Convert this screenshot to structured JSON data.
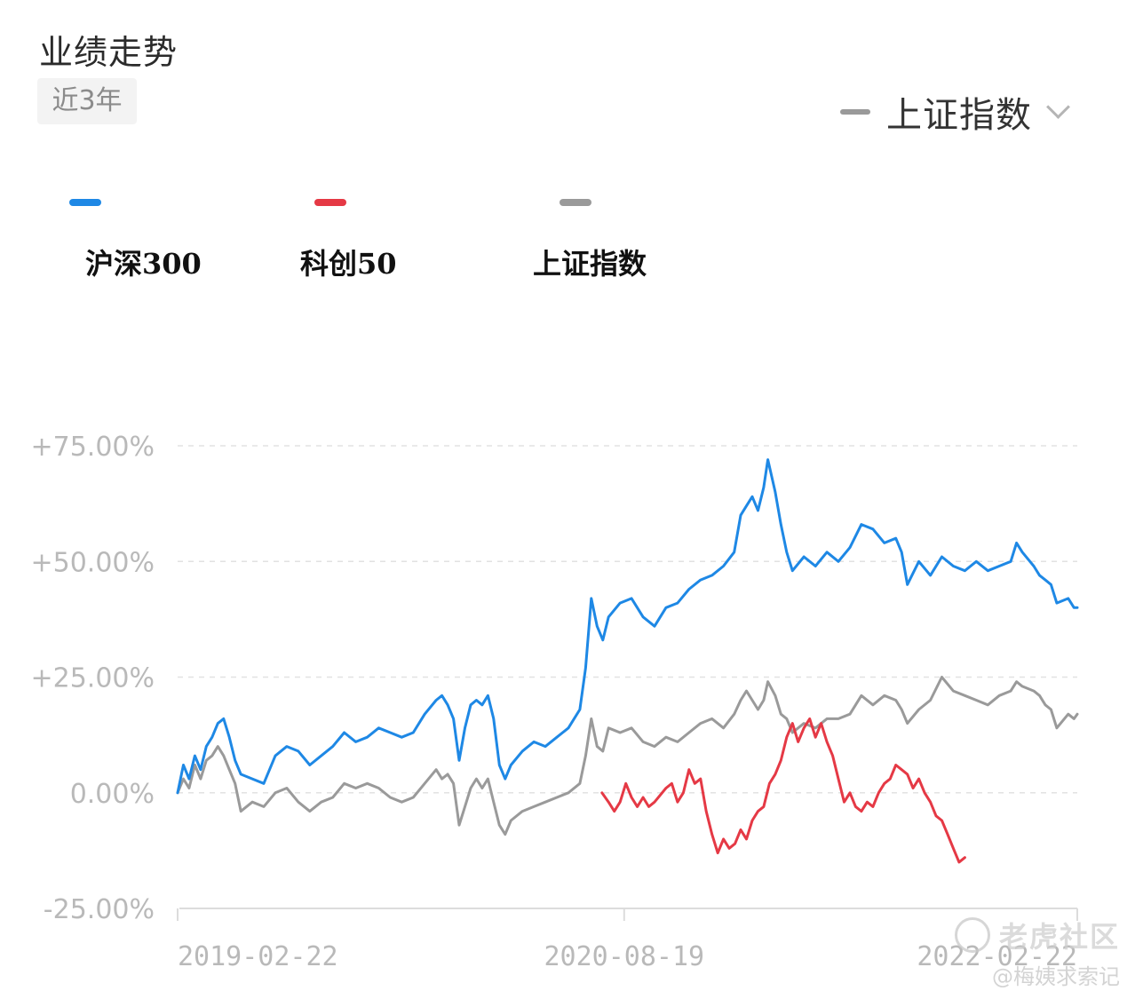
{
  "header": {
    "title": "业绩走势",
    "period": "近3年"
  },
  "compare": {
    "label": "上证指数",
    "swatch_color": "#9a9a9a"
  },
  "legend": [
    {
      "label": "沪深300",
      "color": "#1e88e5"
    },
    {
      "label": "科创50",
      "color": "#e53945"
    },
    {
      "label": "上证指数",
      "color": "#9a9a9a"
    }
  ],
  "watermark": {
    "brand": "老虎社区",
    "author": "@梅姨求索记"
  },
  "chart_data": {
    "type": "line",
    "title": "",
    "xlabel": "",
    "ylabel": "",
    "ylim": [
      -25,
      75
    ],
    "y_ticks": [
      {
        "value": 75,
        "label": "+75.00%"
      },
      {
        "value": 50,
        "label": "+50.00%"
      },
      {
        "value": 25,
        "label": "+25.00%"
      },
      {
        "value": 0,
        "label": "0.00%"
      },
      {
        "value": -25,
        "label": "-25.00%"
      }
    ],
    "x_range": [
      "2019-02-22",
      "2022-02-22"
    ],
    "x_ticks": [
      "2019-02-22",
      "2020-08-19",
      "2022-02-22"
    ],
    "grid": true,
    "legend_position": "top-left",
    "series": [
      {
        "name": "沪深300",
        "color": "#1e88e5",
        "points": [
          [
            "2019-02-22",
            0
          ],
          [
            "2019-03-01",
            6
          ],
          [
            "2019-03-08",
            3
          ],
          [
            "2019-03-15",
            8
          ],
          [
            "2019-03-22",
            5
          ],
          [
            "2019-03-29",
            10
          ],
          [
            "2019-04-05",
            12
          ],
          [
            "2019-04-12",
            15
          ],
          [
            "2019-04-19",
            16
          ],
          [
            "2019-04-26",
            12
          ],
          [
            "2019-05-03",
            7
          ],
          [
            "2019-05-10",
            4
          ],
          [
            "2019-05-24",
            3
          ],
          [
            "2019-06-07",
            2
          ],
          [
            "2019-06-21",
            8
          ],
          [
            "2019-07-05",
            10
          ],
          [
            "2019-07-19",
            9
          ],
          [
            "2019-08-02",
            6
          ],
          [
            "2019-08-16",
            8
          ],
          [
            "2019-08-30",
            10
          ],
          [
            "2019-09-13",
            13
          ],
          [
            "2019-09-27",
            11
          ],
          [
            "2019-10-11",
            12
          ],
          [
            "2019-10-25",
            14
          ],
          [
            "2019-11-08",
            13
          ],
          [
            "2019-11-22",
            12
          ],
          [
            "2019-12-06",
            13
          ],
          [
            "2019-12-20",
            17
          ],
          [
            "2020-01-03",
            20
          ],
          [
            "2020-01-10",
            21
          ],
          [
            "2020-01-17",
            19
          ],
          [
            "2020-01-24",
            16
          ],
          [
            "2020-01-31",
            7
          ],
          [
            "2020-02-07",
            14
          ],
          [
            "2020-02-14",
            19
          ],
          [
            "2020-02-21",
            20
          ],
          [
            "2020-02-28",
            19
          ],
          [
            "2020-03-06",
            21
          ],
          [
            "2020-03-13",
            16
          ],
          [
            "2020-03-20",
            6
          ],
          [
            "2020-03-27",
            3
          ],
          [
            "2020-04-03",
            6
          ],
          [
            "2020-04-17",
            9
          ],
          [
            "2020-05-01",
            11
          ],
          [
            "2020-05-15",
            10
          ],
          [
            "2020-05-29",
            12
          ],
          [
            "2020-06-12",
            14
          ],
          [
            "2020-06-26",
            18
          ],
          [
            "2020-07-03",
            27
          ],
          [
            "2020-07-10",
            42
          ],
          [
            "2020-07-17",
            36
          ],
          [
            "2020-07-24",
            33
          ],
          [
            "2020-07-31",
            38
          ],
          [
            "2020-08-14",
            41
          ],
          [
            "2020-08-28",
            42
          ],
          [
            "2020-09-11",
            38
          ],
          [
            "2020-09-25",
            36
          ],
          [
            "2020-10-09",
            40
          ],
          [
            "2020-10-23",
            41
          ],
          [
            "2020-11-06",
            44
          ],
          [
            "2020-11-20",
            46
          ],
          [
            "2020-12-04",
            47
          ],
          [
            "2020-12-18",
            49
          ],
          [
            "2020-12-31",
            52
          ],
          [
            "2021-01-08",
            60
          ],
          [
            "2021-01-15",
            62
          ],
          [
            "2021-01-22",
            64
          ],
          [
            "2021-01-29",
            61
          ],
          [
            "2021-02-05",
            66
          ],
          [
            "2021-02-10",
            72
          ],
          [
            "2021-02-19",
            65
          ],
          [
            "2021-02-26",
            58
          ],
          [
            "2021-03-05",
            52
          ],
          [
            "2021-03-12",
            48
          ],
          [
            "2021-03-26",
            51
          ],
          [
            "2021-04-09",
            49
          ],
          [
            "2021-04-23",
            52
          ],
          [
            "2021-05-07",
            50
          ],
          [
            "2021-05-21",
            53
          ],
          [
            "2021-06-04",
            58
          ],
          [
            "2021-06-18",
            57
          ],
          [
            "2021-07-02",
            54
          ],
          [
            "2021-07-16",
            55
          ],
          [
            "2021-07-23",
            52
          ],
          [
            "2021-07-30",
            45
          ],
          [
            "2021-08-13",
            50
          ],
          [
            "2021-08-27",
            47
          ],
          [
            "2021-09-10",
            51
          ],
          [
            "2021-09-24",
            49
          ],
          [
            "2021-10-08",
            48
          ],
          [
            "2021-10-22",
            50
          ],
          [
            "2021-11-05",
            48
          ],
          [
            "2021-11-19",
            49
          ],
          [
            "2021-12-03",
            50
          ],
          [
            "2021-12-10",
            54
          ],
          [
            "2021-12-17",
            52
          ],
          [
            "2021-12-31",
            49
          ],
          [
            "2022-01-07",
            47
          ],
          [
            "2022-01-14",
            46
          ],
          [
            "2022-01-21",
            45
          ],
          [
            "2022-01-28",
            41
          ],
          [
            "2022-02-11",
            42
          ],
          [
            "2022-02-18",
            40
          ],
          [
            "2022-02-22",
            40
          ]
        ]
      },
      {
        "name": "科创50",
        "color": "#e53945",
        "points": [
          [
            "2020-07-23",
            0
          ],
          [
            "2020-07-31",
            -2
          ],
          [
            "2020-08-07",
            -4
          ],
          [
            "2020-08-14",
            -2
          ],
          [
            "2020-08-21",
            2
          ],
          [
            "2020-08-28",
            -1
          ],
          [
            "2020-09-04",
            -3
          ],
          [
            "2020-09-11",
            -1
          ],
          [
            "2020-09-18",
            -3
          ],
          [
            "2020-09-25",
            -2
          ],
          [
            "2020-10-09",
            1
          ],
          [
            "2020-10-16",
            2
          ],
          [
            "2020-10-23",
            -2
          ],
          [
            "2020-10-30",
            0
          ],
          [
            "2020-11-06",
            5
          ],
          [
            "2020-11-13",
            2
          ],
          [
            "2020-11-20",
            3
          ],
          [
            "2020-11-27",
            -4
          ],
          [
            "2020-12-04",
            -9
          ],
          [
            "2020-12-11",
            -13
          ],
          [
            "2020-12-18",
            -10
          ],
          [
            "2020-12-25",
            -12
          ],
          [
            "2021-01-01",
            -11
          ],
          [
            "2021-01-08",
            -8
          ],
          [
            "2021-01-15",
            -10
          ],
          [
            "2021-01-22",
            -6
          ],
          [
            "2021-01-29",
            -4
          ],
          [
            "2021-02-05",
            -3
          ],
          [
            "2021-02-12",
            2
          ],
          [
            "2021-02-19",
            4
          ],
          [
            "2021-02-26",
            7
          ],
          [
            "2021-03-05",
            12
          ],
          [
            "2021-03-12",
            15
          ],
          [
            "2021-03-19",
            11
          ],
          [
            "2021-03-26",
            14
          ],
          [
            "2021-04-02",
            16
          ],
          [
            "2021-04-09",
            12
          ],
          [
            "2021-04-16",
            15
          ],
          [
            "2021-04-23",
            11
          ],
          [
            "2021-04-30",
            8
          ],
          [
            "2021-05-07",
            3
          ],
          [
            "2021-05-14",
            -2
          ],
          [
            "2021-05-21",
            0
          ],
          [
            "2021-05-28",
            -3
          ],
          [
            "2021-06-04",
            -4
          ],
          [
            "2021-06-11",
            -2
          ],
          [
            "2021-06-18",
            -3
          ],
          [
            "2021-06-25",
            0
          ],
          [
            "2021-07-02",
            2
          ],
          [
            "2021-07-09",
            3
          ],
          [
            "2021-07-16",
            6
          ],
          [
            "2021-07-23",
            5
          ],
          [
            "2021-07-30",
            4
          ],
          [
            "2021-08-06",
            1
          ],
          [
            "2021-08-13",
            3
          ],
          [
            "2021-08-20",
            0
          ],
          [
            "2021-08-27",
            -2
          ],
          [
            "2021-09-03",
            -5
          ],
          [
            "2021-09-10",
            -6
          ],
          [
            "2021-09-17",
            -9
          ],
          [
            "2021-09-24",
            -12
          ],
          [
            "2021-10-01",
            -15
          ],
          [
            "2021-10-08",
            -14
          ]
        ]
      },
      {
        "name": "上证指数",
        "color": "#9a9a9a",
        "points": [
          [
            "2019-02-22",
            0
          ],
          [
            "2019-03-01",
            3
          ],
          [
            "2019-03-08",
            1
          ],
          [
            "2019-03-15",
            6
          ],
          [
            "2019-03-22",
            3
          ],
          [
            "2019-03-29",
            7
          ],
          [
            "2019-04-05",
            8
          ],
          [
            "2019-04-12",
            10
          ],
          [
            "2019-04-19",
            8
          ],
          [
            "2019-04-26",
            5
          ],
          [
            "2019-05-03",
            2
          ],
          [
            "2019-05-10",
            -4
          ],
          [
            "2019-05-24",
            -2
          ],
          [
            "2019-06-07",
            -3
          ],
          [
            "2019-06-21",
            0
          ],
          [
            "2019-07-05",
            1
          ],
          [
            "2019-07-19",
            -2
          ],
          [
            "2019-08-02",
            -4
          ],
          [
            "2019-08-16",
            -2
          ],
          [
            "2019-08-30",
            -1
          ],
          [
            "2019-09-13",
            2
          ],
          [
            "2019-09-27",
            1
          ],
          [
            "2019-10-11",
            2
          ],
          [
            "2019-10-25",
            1
          ],
          [
            "2019-11-08",
            -1
          ],
          [
            "2019-11-22",
            -2
          ],
          [
            "2019-12-06",
            -1
          ],
          [
            "2019-12-20",
            2
          ],
          [
            "2020-01-03",
            5
          ],
          [
            "2020-01-10",
            3
          ],
          [
            "2020-01-17",
            4
          ],
          [
            "2020-01-24",
            2
          ],
          [
            "2020-01-31",
            -7
          ],
          [
            "2020-02-07",
            -3
          ],
          [
            "2020-02-14",
            1
          ],
          [
            "2020-02-21",
            3
          ],
          [
            "2020-02-28",
            1
          ],
          [
            "2020-03-06",
            3
          ],
          [
            "2020-03-13",
            -2
          ],
          [
            "2020-03-20",
            -7
          ],
          [
            "2020-03-27",
            -9
          ],
          [
            "2020-04-03",
            -6
          ],
          [
            "2020-04-17",
            -4
          ],
          [
            "2020-05-01",
            -3
          ],
          [
            "2020-05-15",
            -2
          ],
          [
            "2020-05-29",
            -1
          ],
          [
            "2020-06-12",
            0
          ],
          [
            "2020-06-26",
            2
          ],
          [
            "2020-07-03",
            8
          ],
          [
            "2020-07-10",
            16
          ],
          [
            "2020-07-17",
            10
          ],
          [
            "2020-07-24",
            9
          ],
          [
            "2020-07-31",
            14
          ],
          [
            "2020-08-14",
            13
          ],
          [
            "2020-08-28",
            14
          ],
          [
            "2020-09-11",
            11
          ],
          [
            "2020-09-25",
            10
          ],
          [
            "2020-10-09",
            12
          ],
          [
            "2020-10-23",
            11
          ],
          [
            "2020-11-06",
            13
          ],
          [
            "2020-11-20",
            15
          ],
          [
            "2020-12-04",
            16
          ],
          [
            "2020-12-18",
            14
          ],
          [
            "2020-12-31",
            17
          ],
          [
            "2021-01-08",
            20
          ],
          [
            "2021-01-15",
            22
          ],
          [
            "2021-01-22",
            20
          ],
          [
            "2021-01-29",
            18
          ],
          [
            "2021-02-05",
            20
          ],
          [
            "2021-02-10",
            24
          ],
          [
            "2021-02-19",
            21
          ],
          [
            "2021-02-26",
            17
          ],
          [
            "2021-03-05",
            16
          ],
          [
            "2021-03-12",
            13
          ],
          [
            "2021-03-26",
            15
          ],
          [
            "2021-04-09",
            14
          ],
          [
            "2021-04-23",
            16
          ],
          [
            "2021-05-07",
            16
          ],
          [
            "2021-05-21",
            17
          ],
          [
            "2021-06-04",
            21
          ],
          [
            "2021-06-18",
            19
          ],
          [
            "2021-07-02",
            21
          ],
          [
            "2021-07-16",
            20
          ],
          [
            "2021-07-23",
            18
          ],
          [
            "2021-07-30",
            15
          ],
          [
            "2021-08-13",
            18
          ],
          [
            "2021-08-27",
            20
          ],
          [
            "2021-09-10",
            25
          ],
          [
            "2021-09-24",
            22
          ],
          [
            "2021-10-08",
            21
          ],
          [
            "2021-10-22",
            20
          ],
          [
            "2021-11-05",
            19
          ],
          [
            "2021-11-19",
            21
          ],
          [
            "2021-12-03",
            22
          ],
          [
            "2021-12-10",
            24
          ],
          [
            "2021-12-17",
            23
          ],
          [
            "2021-12-31",
            22
          ],
          [
            "2022-01-07",
            21
          ],
          [
            "2022-01-14",
            19
          ],
          [
            "2022-01-21",
            18
          ],
          [
            "2022-01-28",
            14
          ],
          [
            "2022-02-11",
            17
          ],
          [
            "2022-02-18",
            16
          ],
          [
            "2022-02-22",
            17
          ]
        ]
      }
    ]
  }
}
